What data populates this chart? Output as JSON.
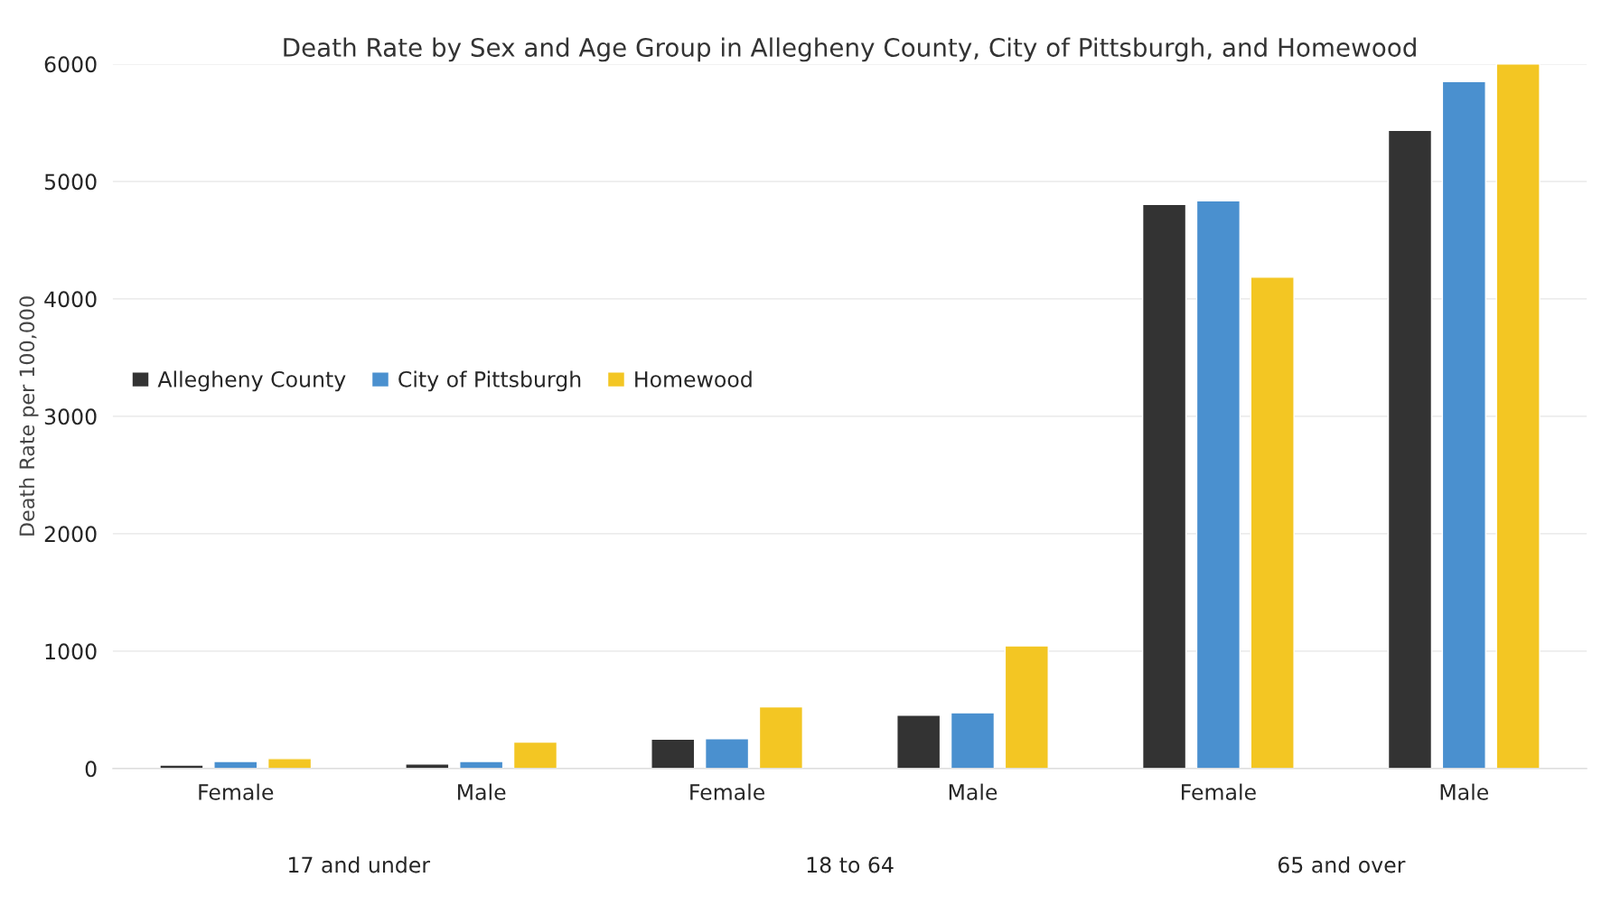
{
  "chart_data": {
    "type": "bar",
    "title": "Death Rate by Sex and Age Group in Allegheny County, City of Pittsburgh, and Homewood",
    "ylabel": "Death Rate per 100,000",
    "categories": [
      "Female",
      "Male",
      "Female",
      "Male",
      "Female",
      "Male"
    ],
    "annotations": [
      "17 and under",
      "18 to 64",
      "65 and over"
    ],
    "series": [
      {
        "name": "Allegheny County",
        "color": "#333333",
        "values": [
          30,
          40,
          250,
          455,
          4805,
          5435
        ]
      },
      {
        "name": "City of Pittsburgh",
        "color": "#4a90cf",
        "values": [
          60,
          60,
          255,
          475,
          4835,
          5850
        ]
      },
      {
        "name": "Homewood",
        "color": "#f3c623",
        "values": [
          85,
          225,
          525,
          1045,
          4185,
          6000
        ]
      }
    ],
    "ylim": [
      0,
      6000
    ],
    "yticks": [
      0,
      1000,
      2000,
      3000,
      4000,
      5000,
      6000
    ],
    "grid": "y",
    "legend": "left"
  }
}
